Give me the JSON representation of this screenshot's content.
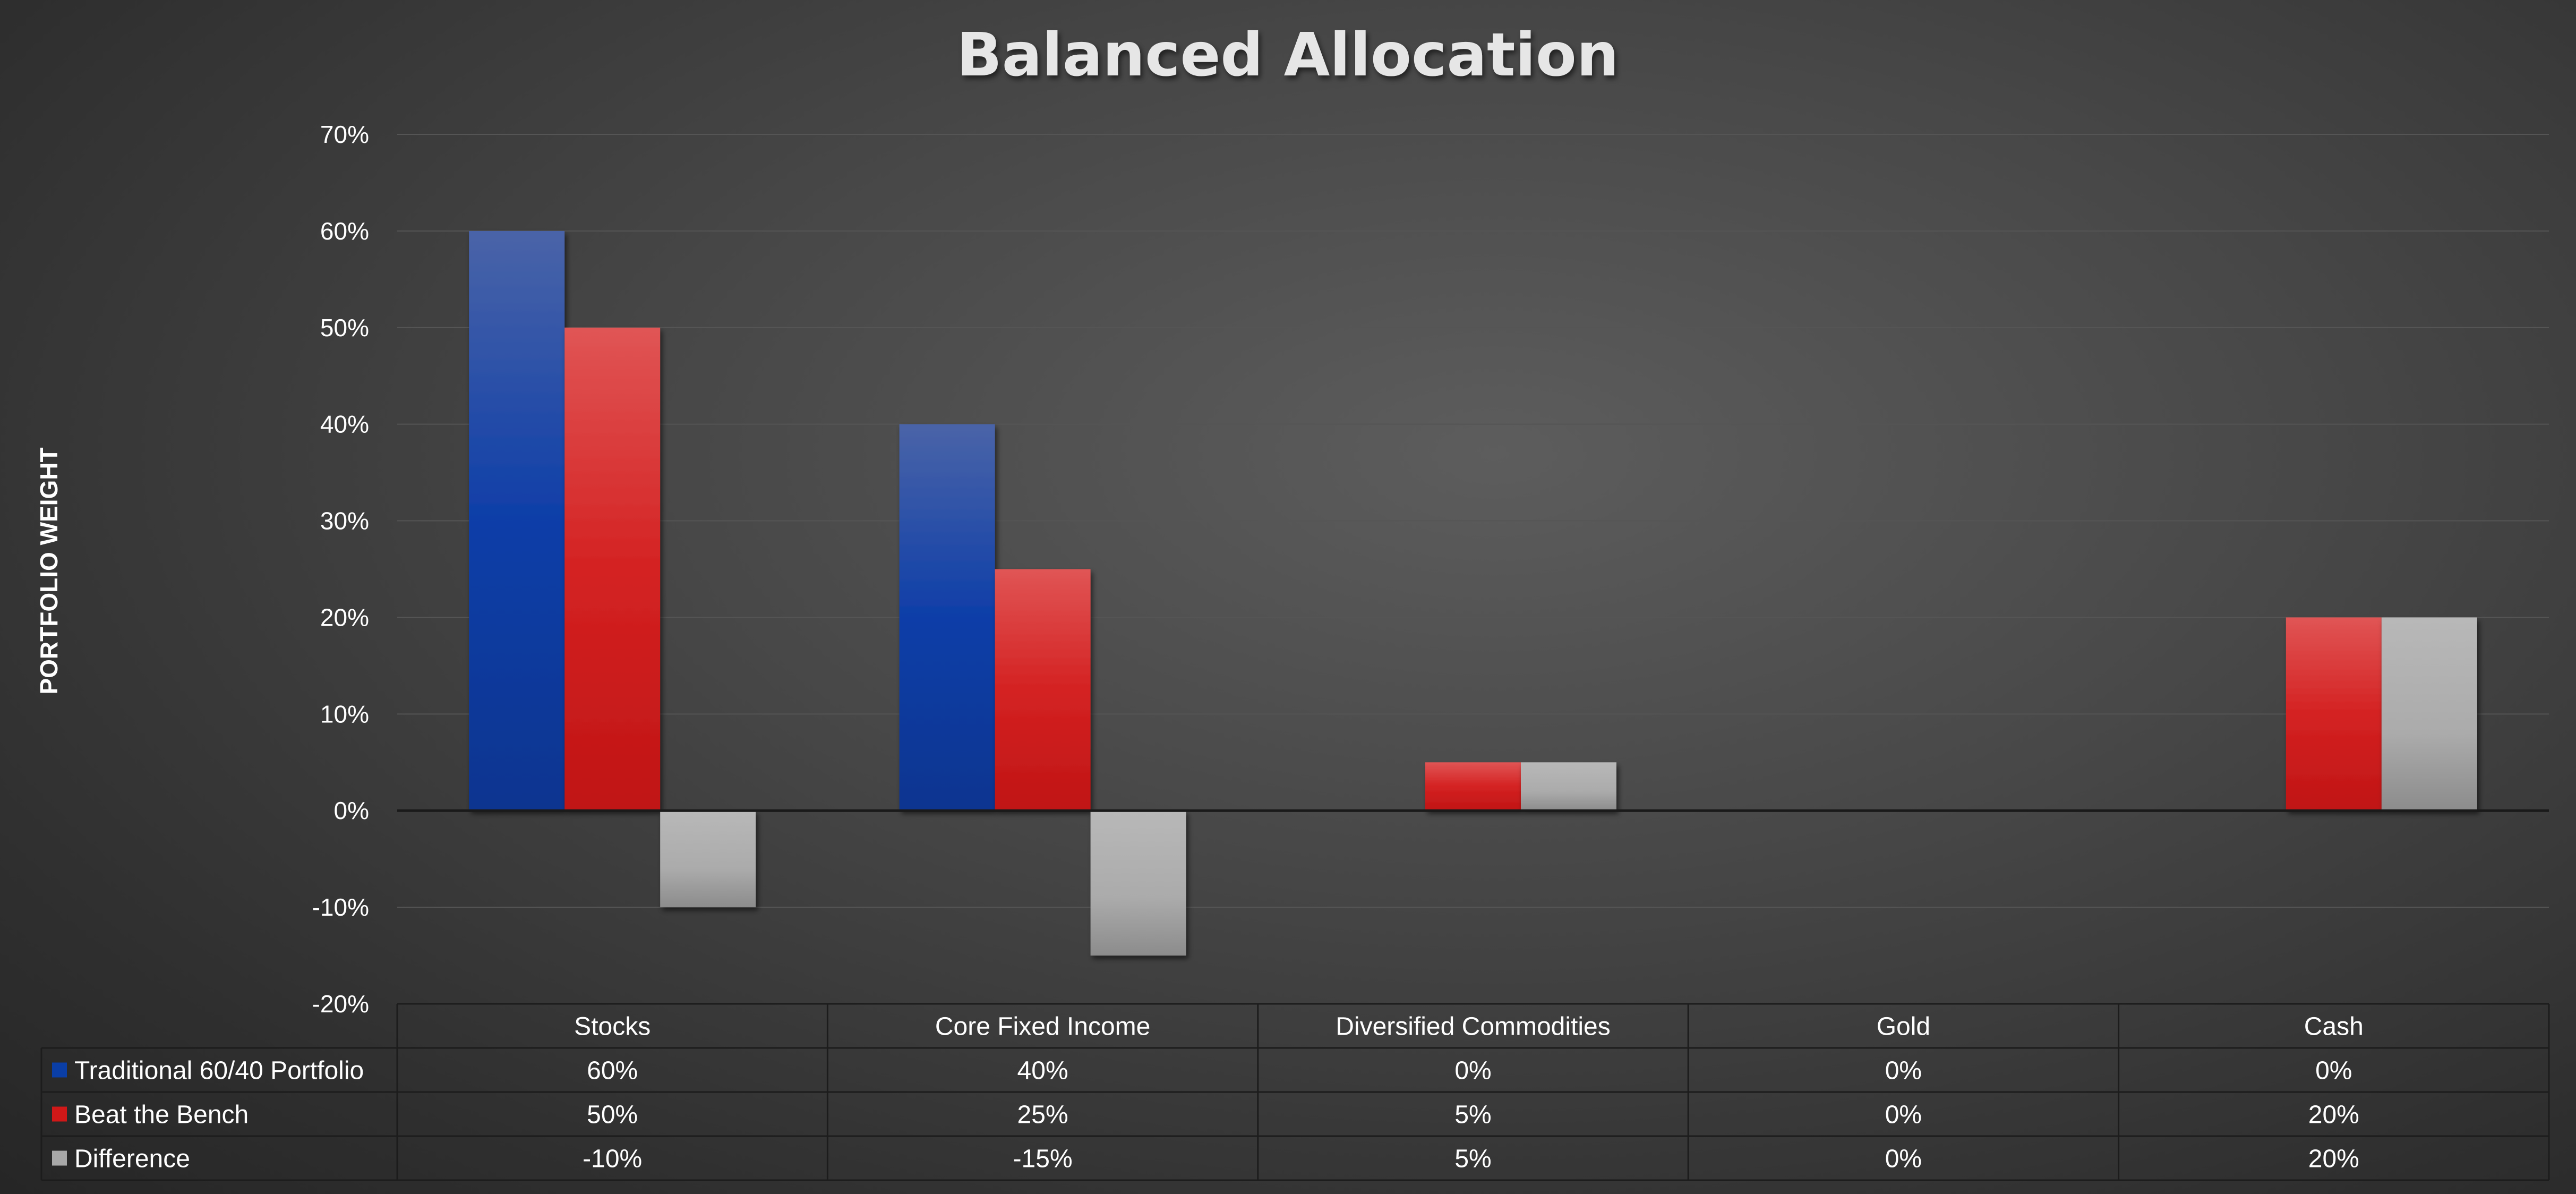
{
  "chart_data": {
    "type": "bar",
    "title": "Balanced Allocation",
    "ylabel": "PORTFOLIO WEIGHT",
    "xlabel": "",
    "ylim": [
      -20,
      70
    ],
    "y_ticks": [
      "70%",
      "60%",
      "50%",
      "40%",
      "30%",
      "20%",
      "10%",
      "0%",
      "-10%",
      "-20%"
    ],
    "categories": [
      "Stocks",
      "Core Fixed Income",
      "Diversified Commodities",
      "Gold",
      "Cash"
    ],
    "series": [
      {
        "name": "Traditional 60/40 Portfolio",
        "color": "#0a3ea6",
        "values": [
          60,
          40,
          0,
          0,
          0
        ],
        "labels": [
          "60%",
          "40%",
          "0%",
          "0%",
          "0%"
        ]
      },
      {
        "name": "Beat the Bench",
        "color": "#d01818",
        "values": [
          50,
          25,
          5,
          0,
          20
        ],
        "labels": [
          "50%",
          "25%",
          "5%",
          "0%",
          "20%"
        ]
      },
      {
        "name": "Difference",
        "color": "#a8a8a8",
        "values": [
          -10,
          -15,
          5,
          0,
          20
        ],
        "labels": [
          "-10%",
          "-15%",
          "5%",
          "0%",
          "20%"
        ]
      }
    ],
    "grid": true,
    "legend": "data-table"
  }
}
